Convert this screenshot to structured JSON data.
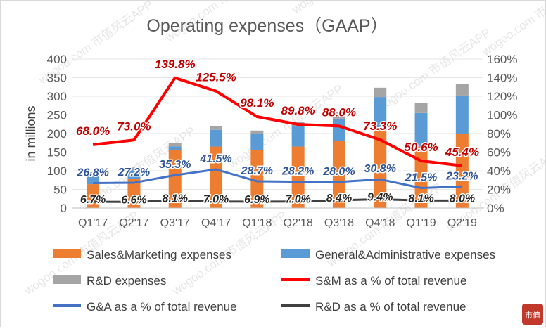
{
  "chart_data": {
    "type": "bar",
    "title": "Operating expenses（GAAP）",
    "ylabel": "in millions",
    "ylim": [
      0,
      400
    ],
    "y2lim": [
      0,
      1.6
    ],
    "y_ticks": [
      "0",
      "50",
      "100",
      "150",
      "200",
      "250",
      "300",
      "350",
      "400"
    ],
    "y2_ticks": [
      "0%",
      "20%",
      "40%",
      "60%",
      "80%",
      "100%",
      "120%",
      "140%",
      "160%"
    ],
    "categories": [
      "Q1'17",
      "Q2'17",
      "Q3'17",
      "Q4'17",
      "Q1'18",
      "Q2'18",
      "Q3'18",
      "Q4'18",
      "Q1'19",
      "Q2'19"
    ],
    "stacked": true,
    "series": [
      {
        "name": "Sales&Marketing expenses",
        "kind": "bar",
        "color": "#ED7D31",
        "values": [
          64,
          78,
          155,
          165,
          155,
          165,
          180,
          208,
          165,
          200
        ]
      },
      {
        "name": "General&Administrative expenses",
        "kind": "bar",
        "color": "#5B9BD5",
        "values": [
          25,
          24,
          10,
          45,
          45,
          55,
          60,
          90,
          90,
          102
        ]
      },
      {
        "name": "R&D expenses",
        "kind": "bar",
        "color": "#A5A5A5",
        "values": [
          7,
          7,
          9,
          10,
          8,
          12,
          18,
          25,
          28,
          32
        ]
      },
      {
        "name": "S&M as a % of total revenue",
        "kind": "line",
        "axis": "right",
        "color": "#FF0000",
        "label_color": "#C00000",
        "values": [
          0.68,
          0.73,
          1.398,
          1.255,
          0.981,
          0.898,
          0.88,
          0.733,
          0.506,
          0.454
        ],
        "labels": [
          "68.0%",
          "73.0%",
          "139.8%",
          "125.5%",
          "98.1%",
          "89.8%",
          "88.0%",
          "73.3%",
          "50.6%",
          "45.4%"
        ]
      },
      {
        "name": "G&A as a % of total revenue",
        "kind": "line",
        "axis": "right",
        "color": "#4472C4",
        "label_color": "#2F5597",
        "values": [
          0.268,
          0.272,
          0.353,
          0.415,
          0.287,
          0.282,
          0.28,
          0.308,
          0.215,
          0.232
        ],
        "labels": [
          "26.8%",
          "27.2%",
          "35.3%",
          "41.5%",
          "28.7%",
          "28.2%",
          "28.0%",
          "30.8%",
          "21.5%",
          "23.2%"
        ]
      },
      {
        "name": "R&D as a % of total revenue",
        "kind": "line",
        "axis": "right",
        "color": "#404040",
        "label_color": "#262626",
        "values": [
          0.067,
          0.066,
          0.081,
          0.07,
          0.069,
          0.07,
          0.084,
          0.094,
          0.081,
          0.08
        ],
        "labels": [
          "6.7%",
          "6.6%",
          "8.1%",
          "7.0%",
          "6.9%",
          "7.0%",
          "8.4%",
          "9.4%",
          "8.1%",
          "8.0%"
        ]
      }
    ],
    "legend": "bottom"
  },
  "watermark": "wogoo.com 市值风云APP",
  "logo": "市值"
}
